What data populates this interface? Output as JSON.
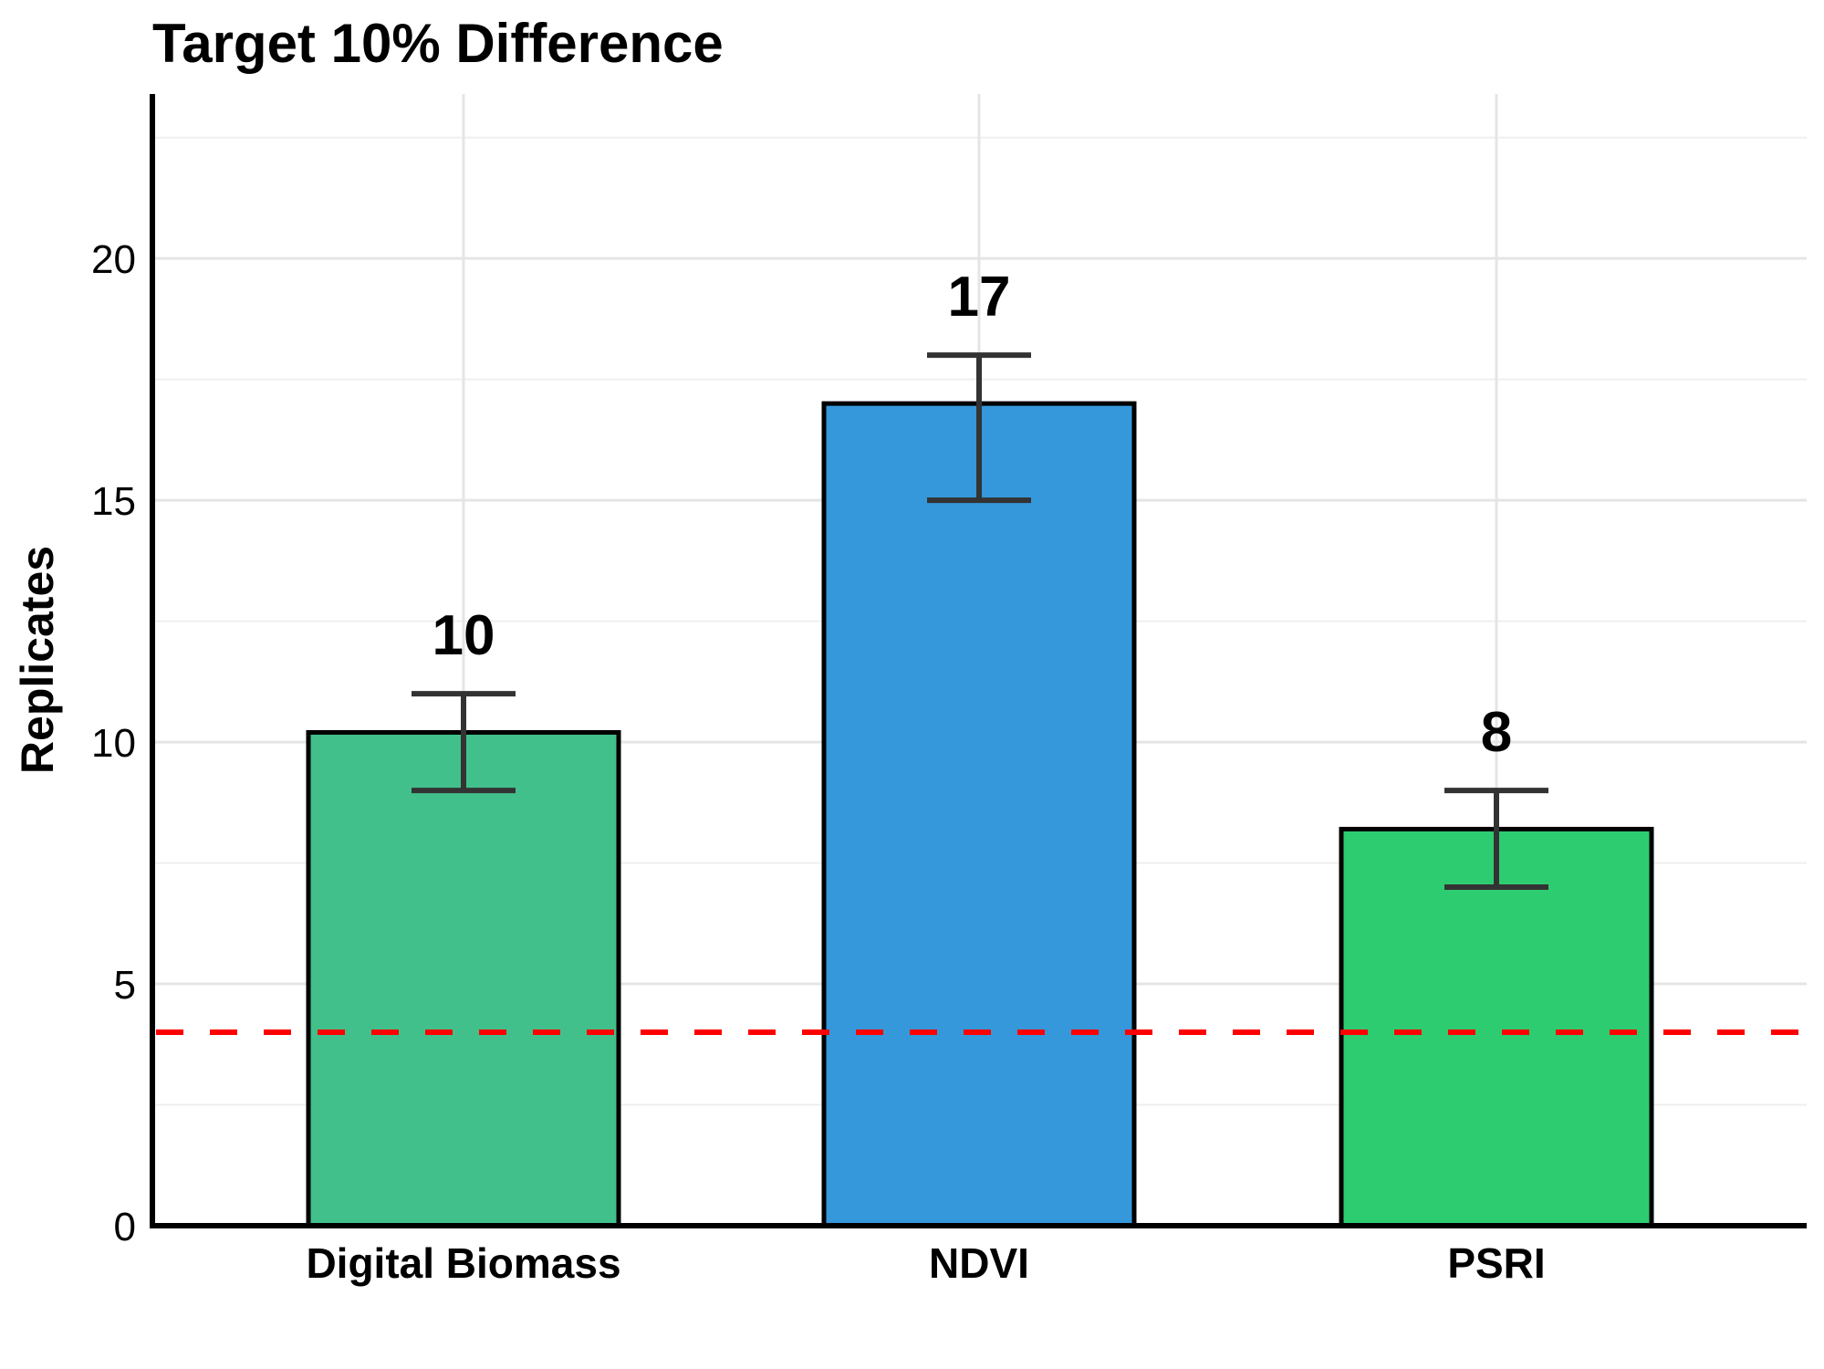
{
  "chart_data": {
    "type": "bar",
    "title": "Target 10% Difference",
    "xlabel": "",
    "ylabel": "Replicates",
    "categories": [
      "Digital Biomass",
      "NDVI",
      "PSRI"
    ],
    "values": [
      10.2,
      17.0,
      8.2
    ],
    "data_labels": [
      "10",
      "17",
      "8"
    ],
    "error_bars": [
      {
        "low": 9,
        "high": 11
      },
      {
        "low": 15,
        "high": 18
      },
      {
        "low": 7,
        "high": 9
      }
    ],
    "colors": [
      "#42C08C",
      "#3598DB",
      "#2ECC71"
    ],
    "reference_line": {
      "y": 4,
      "color": "#FF0000",
      "style": "dashed"
    },
    "ylim": [
      0,
      23.4
    ],
    "yticks": [
      0,
      5,
      10,
      15,
      20
    ],
    "minor_grid_step": 2.5,
    "grid": true,
    "legend": "none"
  }
}
